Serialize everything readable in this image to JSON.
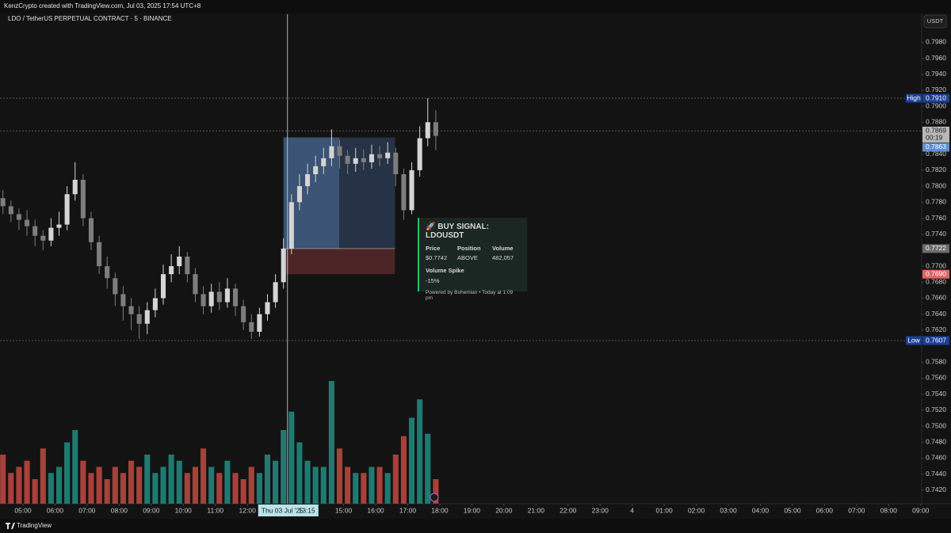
{
  "header": {
    "credit": "KenzCrypto created with TradingView.com, Jul 03, 2025 17:54 UTC+8",
    "currency": "USDT",
    "footer": "TradingView"
  },
  "chart_data": {
    "type": "candlestick",
    "title": "LDO / TetherUS PERPETUAL CONTRACT · 5 · BINANCE",
    "x": [
      4.375,
      4.625,
      4.875,
      5.125,
      5.375,
      5.625,
      5.875,
      6.125,
      6.375,
      6.625,
      6.875,
      7.125,
      7.375,
      7.625,
      7.875,
      8.125,
      8.375,
      8.625,
      8.875,
      9.125,
      9.375,
      9.625,
      9.875,
      10.125,
      10.375,
      10.625,
      10.875,
      11.125,
      11.375,
      11.625,
      11.875,
      12.125,
      12.375,
      12.625,
      12.875,
      13.125,
      13.375,
      13.625,
      13.875,
      14.125,
      14.375,
      14.625,
      14.875,
      15.125,
      15.375,
      15.625,
      15.875,
      16.125,
      16.375,
      16.625,
      16.875,
      17.125,
      17.375,
      17.625,
      17.875
    ],
    "open": [
      0.7785,
      0.7775,
      0.7765,
      0.7758,
      0.775,
      0.7738,
      0.7732,
      0.7748,
      0.7752,
      0.779,
      0.7808,
      0.776,
      0.773,
      0.77,
      0.7685,
      0.7665,
      0.765,
      0.764,
      0.7628,
      0.7645,
      0.766,
      0.769,
      0.77,
      0.7712,
      0.769,
      0.7665,
      0.765,
      0.7668,
      0.7655,
      0.7672,
      0.765,
      0.763,
      0.7618,
      0.764,
      0.7655,
      0.768,
      0.7722,
      0.778,
      0.78,
      0.7815,
      0.7825,
      0.7835,
      0.785,
      0.7838,
      0.7828,
      0.7835,
      0.783,
      0.784,
      0.7835,
      0.7842,
      0.7815,
      0.777,
      0.782,
      0.786,
      0.788
    ],
    "high": [
      0.7795,
      0.7782,
      0.7772,
      0.777,
      0.7758,
      0.7745,
      0.776,
      0.7768,
      0.78,
      0.783,
      0.7815,
      0.7768,
      0.7738,
      0.7712,
      0.7692,
      0.7675,
      0.766,
      0.765,
      0.7655,
      0.7672,
      0.7702,
      0.7715,
      0.7725,
      0.7718,
      0.7698,
      0.7675,
      0.7678,
      0.768,
      0.7685,
      0.7678,
      0.7658,
      0.764,
      0.7648,
      0.7665,
      0.769,
      0.7735,
      0.779,
      0.7815,
      0.7828,
      0.7838,
      0.7848,
      0.7871,
      0.7858,
      0.7845,
      0.7848,
      0.7846,
      0.7852,
      0.785,
      0.7855,
      0.7848,
      0.7822,
      0.783,
      0.7875,
      0.791,
      0.7895
    ],
    "low": [
      0.7765,
      0.7755,
      0.7745,
      0.7738,
      0.7725,
      0.772,
      0.7725,
      0.7738,
      0.7745,
      0.7782,
      0.775,
      0.772,
      0.769,
      0.7672,
      0.765,
      0.7632,
      0.762,
      0.7609,
      0.7615,
      0.7636,
      0.7652,
      0.768,
      0.769,
      0.768,
      0.7655,
      0.764,
      0.7642,
      0.7645,
      0.7648,
      0.7638,
      0.762,
      0.7609,
      0.7612,
      0.7632,
      0.7648,
      0.7672,
      0.7715,
      0.777,
      0.779,
      0.7805,
      0.7815,
      0.7825,
      0.7822,
      0.7815,
      0.7818,
      0.782,
      0.7822,
      0.7825,
      0.7828,
      0.78,
      0.7758,
      0.7765,
      0.7812,
      0.785,
      0.7845
    ],
    "close": [
      0.7775,
      0.7765,
      0.7758,
      0.775,
      0.7738,
      0.7732,
      0.7748,
      0.7752,
      0.779,
      0.7808,
      0.776,
      0.773,
      0.77,
      0.7685,
      0.7665,
      0.765,
      0.764,
      0.7628,
      0.7645,
      0.766,
      0.769,
      0.77,
      0.7712,
      0.769,
      0.7665,
      0.765,
      0.7668,
      0.7655,
      0.7672,
      0.765,
      0.763,
      0.7618,
      0.764,
      0.7655,
      0.768,
      0.7722,
      0.778,
      0.78,
      0.7815,
      0.7825,
      0.7835,
      0.785,
      0.7838,
      0.7828,
      0.7835,
      0.783,
      0.784,
      0.7835,
      0.7842,
      0.7815,
      0.777,
      0.782,
      0.786,
      0.788,
      0.7863
    ],
    "volume": [
      40,
      25,
      30,
      35,
      20,
      45,
      25,
      30,
      50,
      60,
      35,
      25,
      30,
      20,
      30,
      25,
      35,
      30,
      40,
      25,
      30,
      40,
      35,
      25,
      30,
      45,
      30,
      25,
      35,
      25,
      20,
      30,
      25,
      40,
      35,
      60,
      75,
      50,
      35,
      30,
      30,
      100,
      45,
      30,
      25,
      25,
      30,
      30,
      25,
      40,
      55,
      70,
      85,
      57,
      20
    ],
    "up_color": "#d4d4d4",
    "down_color": "#7d7d7d",
    "volume_up_color": "#1f7a70",
    "volume_down_color": "#a8403b",
    "xlim": [
      4.283,
      33.03
    ],
    "xticks": [
      {
        "value": 5,
        "label": "05:00"
      },
      {
        "value": 6,
        "label": "06:00"
      },
      {
        "value": 7,
        "label": "07:00"
      },
      {
        "value": 8,
        "label": "08:00"
      },
      {
        "value": 9,
        "label": "09:00"
      },
      {
        "value": 10,
        "label": "10:00"
      },
      {
        "value": 11,
        "label": "11:00"
      },
      {
        "value": 12,
        "label": "12:00"
      },
      {
        "value": 15,
        "label": "15:00"
      },
      {
        "value": 16,
        "label": "16:00"
      },
      {
        "value": 17,
        "label": "17:00"
      },
      {
        "value": 18,
        "label": "18:00"
      },
      {
        "value": 19,
        "label": "19:00"
      },
      {
        "value": 20,
        "label": "20:00"
      },
      {
        "value": 21,
        "label": "21:00"
      },
      {
        "value": 22,
        "label": "22:00"
      },
      {
        "value": 23,
        "label": "23:00"
      },
      {
        "value": 24,
        "label": "4"
      },
      {
        "value": 25,
        "label": "01:00"
      },
      {
        "value": 26,
        "label": "02:00"
      },
      {
        "value": 27,
        "label": "03:00"
      },
      {
        "value": 28,
        "label": "04:00"
      },
      {
        "value": 29,
        "label": "05:00"
      },
      {
        "value": 30,
        "label": "06:00"
      },
      {
        "value": 31,
        "label": "07:00"
      },
      {
        "value": 32,
        "label": "08:00"
      },
      {
        "value": 33,
        "label": "09:00"
      }
    ],
    "ylim": [
      0.7403,
      0.8015
    ],
    "yticks": [
      {
        "value": 0.798,
        "label": "0.7980"
      },
      {
        "value": 0.796,
        "label": "0.7960"
      },
      {
        "value": 0.794,
        "label": "0.7940"
      },
      {
        "value": 0.792,
        "label": "0.7920"
      },
      {
        "value": 0.79,
        "label": "0.7900"
      },
      {
        "value": 0.788,
        "label": "0.7880"
      },
      {
        "value": 0.784,
        "label": "0.7840"
      },
      {
        "value": 0.782,
        "label": "0.7820"
      },
      {
        "value": 0.78,
        "label": "0.7800"
      },
      {
        "value": 0.778,
        "label": "0.7780"
      },
      {
        "value": 0.776,
        "label": "0.7760"
      },
      {
        "value": 0.774,
        "label": "0.7740"
      },
      {
        "value": 0.77,
        "label": "0.7700"
      },
      {
        "value": 0.768,
        "label": "0.7680"
      },
      {
        "value": 0.766,
        "label": "0.7660"
      },
      {
        "value": 0.764,
        "label": "0.7640"
      },
      {
        "value": 0.762,
        "label": "0.7620"
      },
      {
        "value": 0.758,
        "label": "0.7580"
      },
      {
        "value": 0.756,
        "label": "0.7560"
      },
      {
        "value": 0.754,
        "label": "0.7540"
      },
      {
        "value": 0.752,
        "label": "0.7520"
      },
      {
        "value": 0.75,
        "label": "0.7500"
      },
      {
        "value": 0.748,
        "label": "0.7480"
      },
      {
        "value": 0.746,
        "label": "0.7460"
      },
      {
        "value": 0.744,
        "label": "0.7440"
      },
      {
        "value": 0.742,
        "label": "0.7420"
      }
    ],
    "price_markers": [
      {
        "name": "High",
        "value": 0.791,
        "value_label": "0.7910",
        "color": "#1c3f95"
      },
      {
        "name": "Low",
        "value": 0.7607,
        "color": "#1c3f95"
      }
    ],
    "price_line": {
      "value": 0.7869,
      "countdown": "00:19"
    },
    "current_price": 0.7863,
    "position": {
      "start": 13.125,
      "end": 16.6,
      "target": 0.7861,
      "entry": 0.7722,
      "stop": {
        "value": 0.769,
        "label": "0.7690"
      }
    },
    "cursor": {
      "x": 13.25,
      "date": "Thu 03 Jul '25",
      "time": "13:15"
    }
  },
  "signal_card": {
    "title": "🚀 BUY SIGNAL: LDOUSDT",
    "columns": [
      "Price",
      "Position",
      "Volume"
    ],
    "row": [
      "$0.7742",
      "ABOVE",
      "482,057"
    ],
    "spike_label": "Volume Spike",
    "spike_value": "-15%",
    "footer": "Powered by Bohemian • Today at 1:09 pm"
  }
}
